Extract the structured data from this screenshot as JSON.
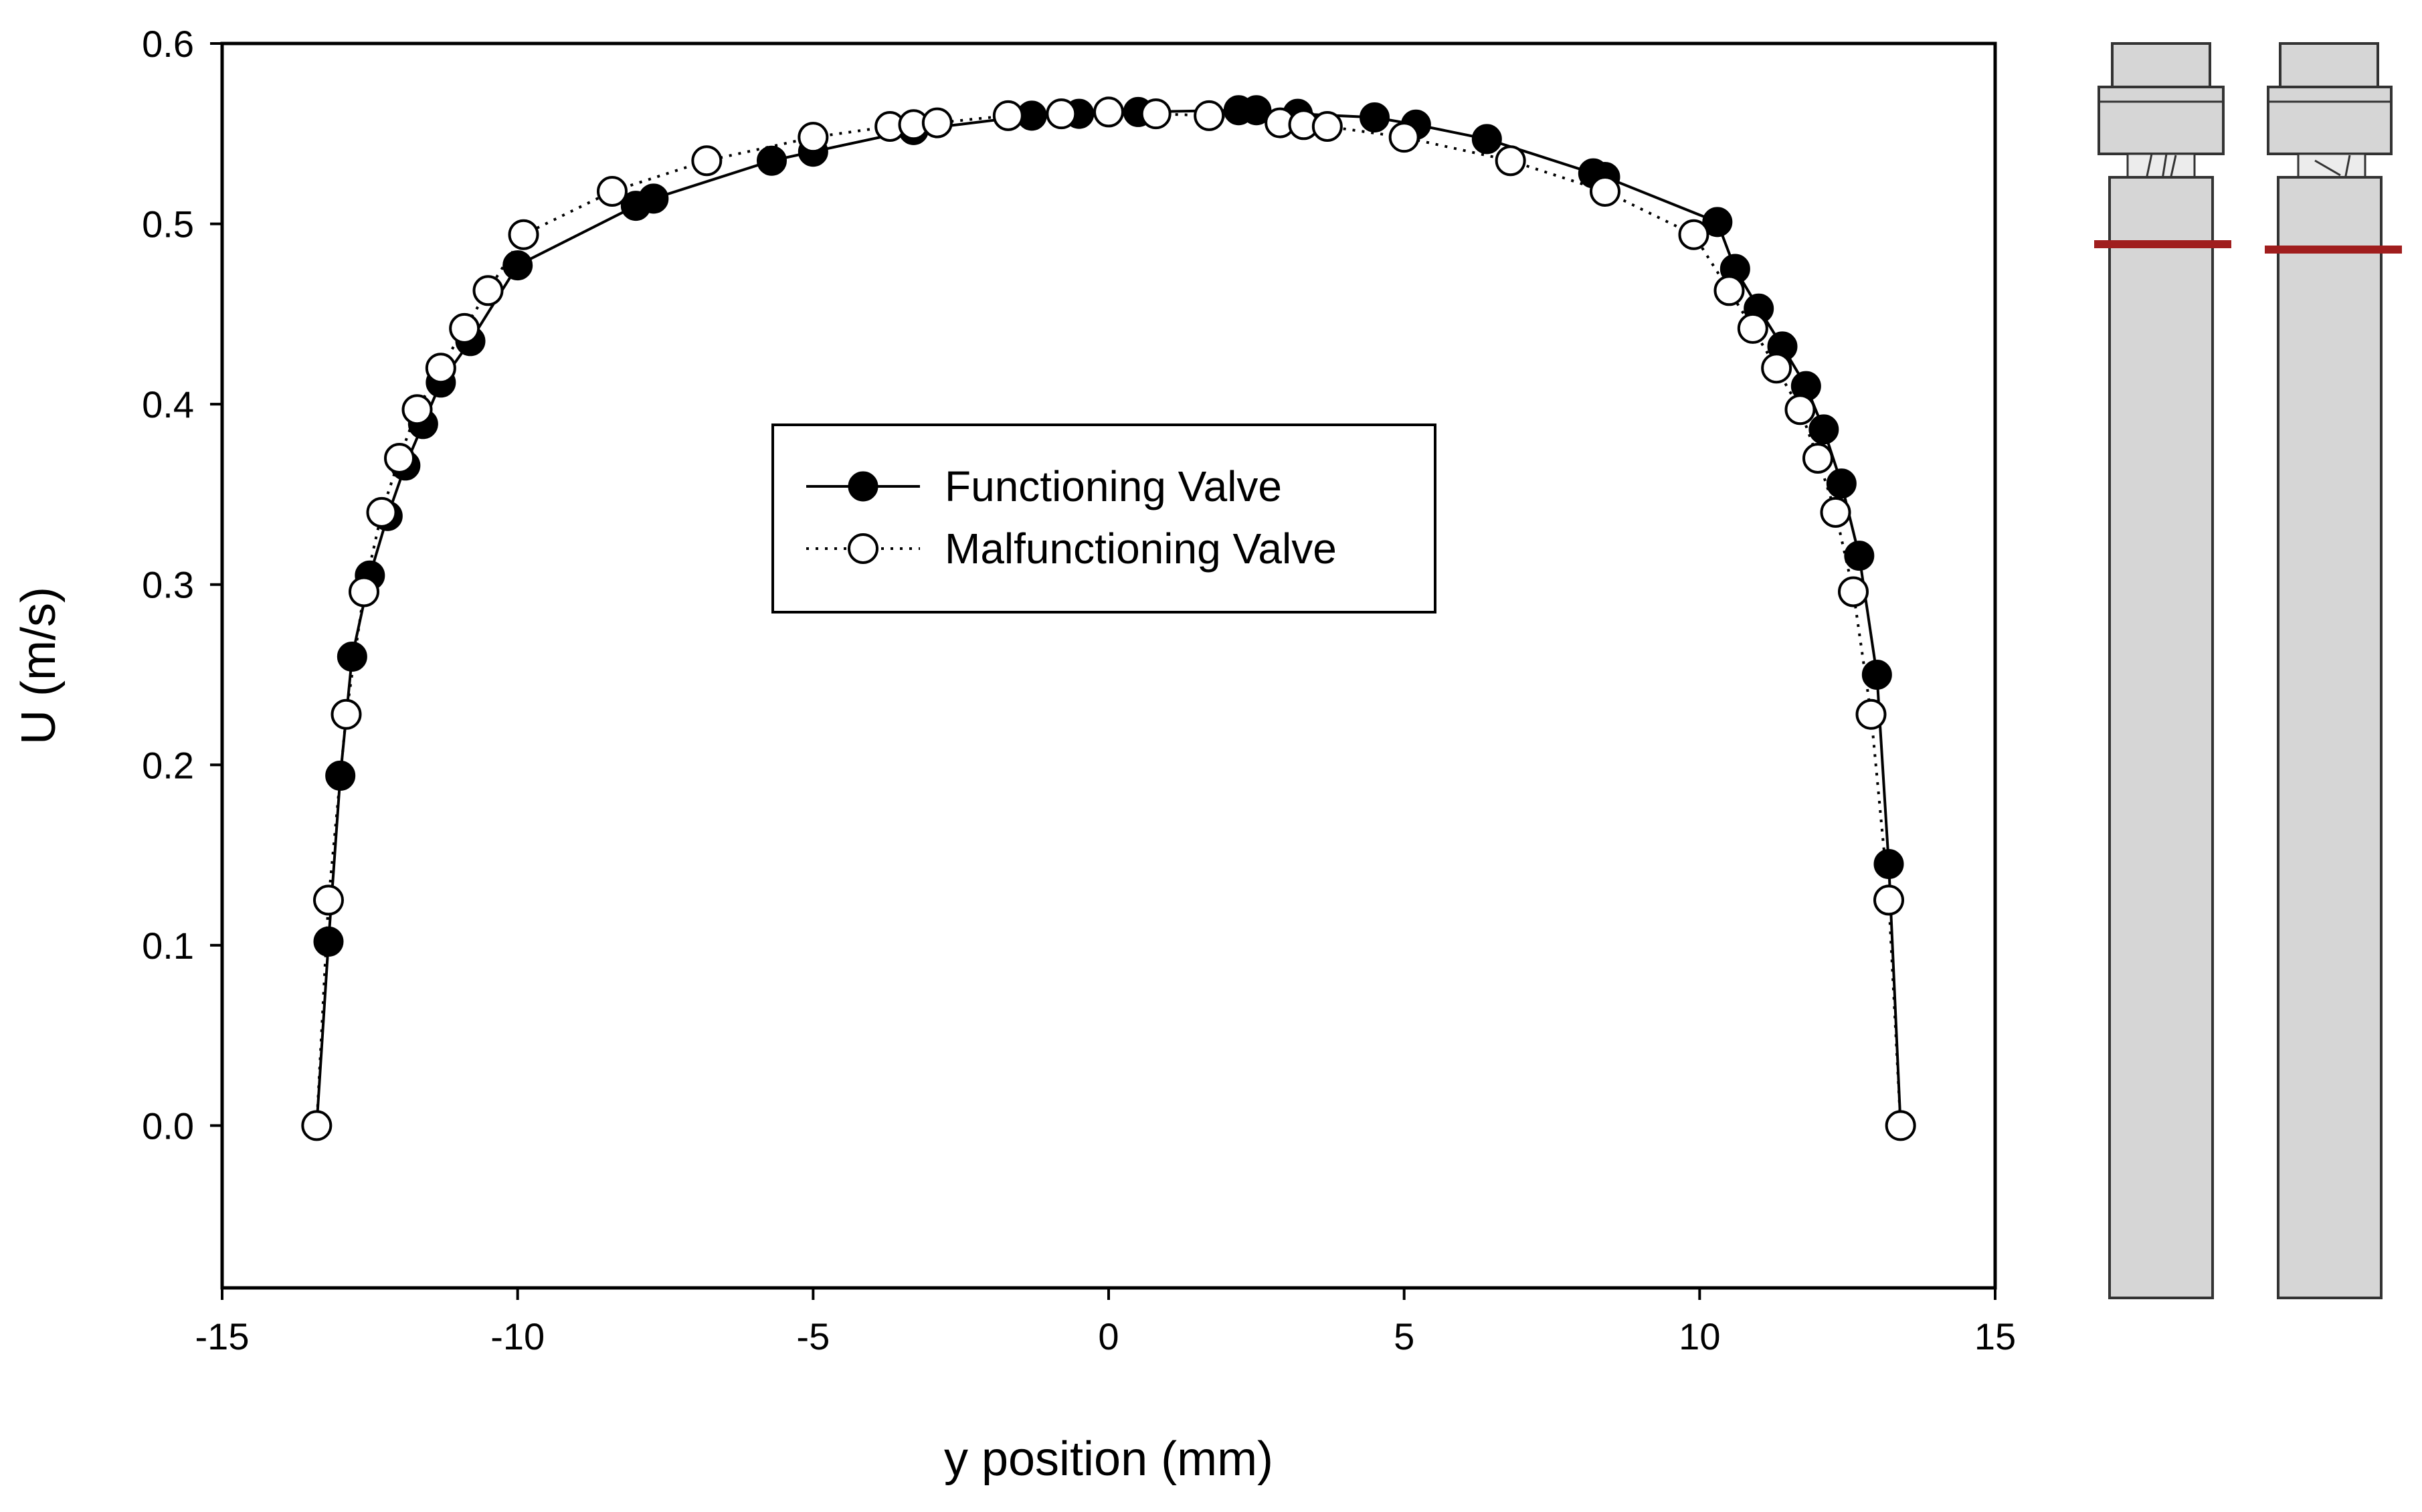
{
  "chart_data": {
    "type": "line",
    "title": "",
    "xlabel": "y position (mm)",
    "ylabel": "U (m/s)",
    "xlim": [
      -15,
      15
    ],
    "ylim": [
      -0.09,
      0.6
    ],
    "xticks": [
      -15,
      -10,
      -5,
      0,
      5,
      10,
      15
    ],
    "xtick_labels": [
      "-15",
      "-10",
      "-5",
      "0",
      "5",
      "10",
      "15"
    ],
    "yticks": [
      0.0,
      0.1,
      0.2,
      0.3,
      0.4,
      0.5,
      0.6
    ],
    "ytick_labels": [
      "0.0",
      "0.1",
      "0.2",
      "0.3",
      "0.4",
      "0.5",
      "0.6"
    ],
    "grid": false,
    "legend_position": "center",
    "series": [
      {
        "name": "Functioning Valve",
        "marker": "filled-circle",
        "line": "solid",
        "x": [
          -13.4,
          -13.2,
          -13.0,
          -12.8,
          -12.5,
          -12.2,
          -11.9,
          -11.6,
          -11.3,
          -10.8,
          -10.0,
          -8.0,
          -7.7,
          -5.7,
          -5.0,
          -3.3,
          -1.3,
          -0.5,
          0.5,
          2.2,
          2.5,
          3.2,
          4.5,
          5.2,
          6.4,
          8.2,
          8.4,
          10.3,
          10.6,
          11.0,
          11.4,
          11.8,
          12.1,
          12.4,
          12.7,
          13.0,
          13.2,
          13.4
        ],
        "y": [
          0.0,
          0.102,
          0.194,
          0.26,
          0.305,
          0.338,
          0.366,
          0.389,
          0.412,
          0.435,
          0.477,
          0.51,
          0.514,
          0.535,
          0.54,
          0.552,
          0.56,
          0.561,
          0.562,
          0.563,
          0.563,
          0.561,
          0.559,
          0.555,
          0.547,
          0.528,
          0.526,
          0.501,
          0.475,
          0.453,
          0.432,
          0.41,
          0.386,
          0.356,
          0.316,
          0.25,
          0.145,
          0.0
        ]
      },
      {
        "name": "Malfunctioning Valve",
        "marker": "open-circle",
        "line": "dotted",
        "x": [
          -13.4,
          -13.2,
          -12.9,
          -12.6,
          -12.3,
          -12.0,
          -11.7,
          -11.3,
          -10.9,
          -10.5,
          -9.9,
          -8.4,
          -6.8,
          -5.0,
          -3.7,
          -3.3,
          -2.9,
          -1.7,
          -0.8,
          0.0,
          0.8,
          1.7,
          2.9,
          3.3,
          3.7,
          5.0,
          6.8,
          8.4,
          9.9,
          10.5,
          10.9,
          11.3,
          11.7,
          12.0,
          12.3,
          12.6,
          12.9,
          13.2,
          13.4
        ],
        "y": [
          0.0,
          0.125,
          0.228,
          0.296,
          0.34,
          0.37,
          0.397,
          0.42,
          0.442,
          0.463,
          0.494,
          0.518,
          0.535,
          0.548,
          0.554,
          0.555,
          0.556,
          0.56,
          0.561,
          0.562,
          0.561,
          0.56,
          0.556,
          0.555,
          0.554,
          0.548,
          0.535,
          0.518,
          0.494,
          0.463,
          0.442,
          0.42,
          0.397,
          0.37,
          0.34,
          0.296,
          0.228,
          0.125,
          0.0
        ]
      }
    ]
  },
  "colors": {
    "axis": "#000000",
    "filled_marker": "#000000",
    "open_marker_fill": "#ffffff",
    "valve_body": "#d6d6d6",
    "valve_outline": "#333333",
    "measurement_line": "#a01e1e"
  },
  "schematic": {
    "icon": "valve-tube-icon",
    "panels": [
      "functioning-valve-tube",
      "malfunctioning-valve-tube"
    ]
  }
}
